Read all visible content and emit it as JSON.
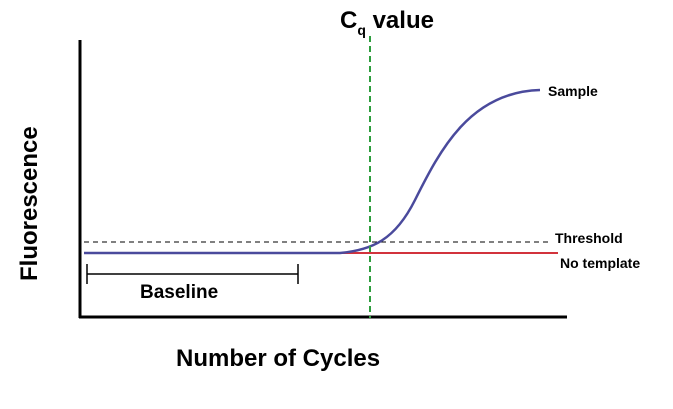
{
  "title": {
    "main": "C",
    "subscript": "q",
    "suffix": " value"
  },
  "axes": {
    "x_label": "Number of Cycles",
    "y_label": "Fluorescence"
  },
  "annotations": {
    "sample": "Sample",
    "threshold": "Threshold",
    "no_template": "No template",
    "baseline": "Baseline"
  },
  "colors": {
    "sample_curve": "#4a4a9c",
    "no_template": "#d2333c",
    "cq_marker": "#2e9e3e",
    "threshold": "#000000",
    "axes": "#000000"
  }
}
